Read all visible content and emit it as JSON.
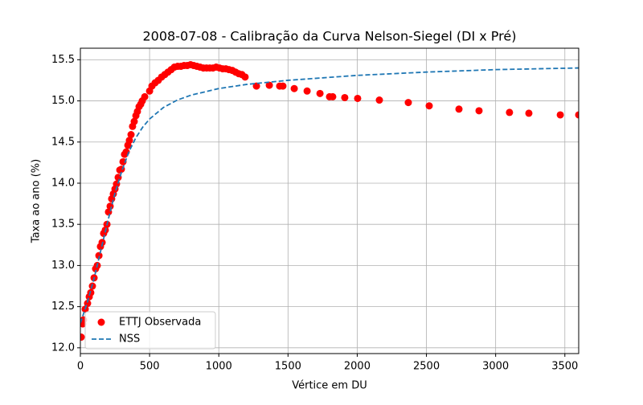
{
  "chart_data": {
    "type": "scatter",
    "title": "2008-07-08 - Calibração da Curva Nelson-Siegel (DI x Pré)",
    "xlabel": "Vértice em DU",
    "ylabel": "Taxa ao ano (%)",
    "xlim": [
      0,
      3600
    ],
    "ylim": [
      11.93,
      15.64
    ],
    "xticks": [
      0,
      500,
      1000,
      1500,
      2000,
      2500,
      3000,
      3500
    ],
    "yticks": [
      {
        "value": 12,
        "label": "12.0"
      },
      12.5,
      {
        "value": 13,
        "label": "13.0"
      },
      13.5,
      {
        "value": 14,
        "label": "14.0"
      },
      14.5,
      {
        "value": 15,
        "label": "15.0"
      },
      15.5
    ],
    "grid": true,
    "legend": "lower left",
    "series": [
      {
        "name": "ETTJ Observada",
        "type": "scatter",
        "color": "#ff0000",
        "x": [
          6,
          17,
          23,
          35,
          52,
          64,
          75,
          87,
          99,
          110,
          122,
          134,
          145,
          157,
          168,
          180,
          192,
          203,
          215,
          226,
          238,
          250,
          261,
          273,
          285,
          296,
          308,
          319,
          331,
          343,
          354,
          366,
          377,
          389,
          401,
          412,
          424,
          436,
          447,
          465,
          500,
          517,
          540,
          563,
          587,
          610,
          633,
          656,
          679,
          703,
          726,
          749,
          772,
          796,
          819,
          842,
          865,
          888,
          912,
          935,
          958,
          981,
          1005,
          1028,
          1051,
          1074,
          1098,
          1121,
          1144,
          1167,
          1190,
          1272,
          1365,
          1440,
          1463,
          1545,
          1638,
          1731,
          1800,
          1823,
          1910,
          2003,
          2160,
          2369,
          2520,
          2735,
          2880,
          3100,
          3240,
          3467,
          3600
        ],
        "values": [
          12.13,
          12.29,
          12.34,
          12.47,
          12.54,
          12.62,
          12.67,
          12.75,
          12.85,
          12.96,
          13.0,
          13.12,
          13.23,
          13.28,
          13.39,
          13.43,
          13.5,
          13.65,
          13.72,
          13.81,
          13.87,
          13.93,
          13.99,
          14.07,
          14.16,
          14.17,
          14.26,
          14.35,
          14.38,
          14.46,
          14.52,
          14.59,
          14.69,
          14.75,
          14.82,
          14.87,
          14.93,
          14.96,
          15.0,
          15.05,
          15.12,
          15.18,
          15.22,
          15.25,
          15.29,
          15.32,
          15.35,
          15.38,
          15.41,
          15.42,
          15.42,
          15.43,
          15.43,
          15.44,
          15.43,
          15.42,
          15.41,
          15.4,
          15.4,
          15.4,
          15.4,
          15.41,
          15.4,
          15.39,
          15.39,
          15.38,
          15.37,
          15.35,
          15.33,
          15.32,
          15.29,
          15.18,
          15.19,
          15.18,
          15.18,
          15.15,
          15.12,
          15.09,
          15.05,
          15.05,
          15.04,
          15.03,
          15.01,
          14.98,
          14.94,
          14.9,
          14.88,
          14.86,
          14.85,
          14.83,
          14.83
        ]
      },
      {
        "name": "NSS",
        "type": "line",
        "color": "#1f77b4",
        "x": [
          0,
          50,
          100,
          150,
          200,
          250,
          300,
          350,
          400,
          450,
          500,
          600,
          700,
          800,
          1000,
          1200,
          1500,
          2000,
          2500,
          3000,
          3600
        ],
        "values": [
          12.3,
          12.55,
          12.85,
          13.2,
          13.55,
          13.88,
          14.15,
          14.38,
          14.55,
          14.68,
          14.78,
          14.92,
          15.01,
          15.07,
          15.15,
          15.2,
          15.25,
          15.31,
          15.35,
          15.38,
          15.4
        ]
      }
    ]
  }
}
